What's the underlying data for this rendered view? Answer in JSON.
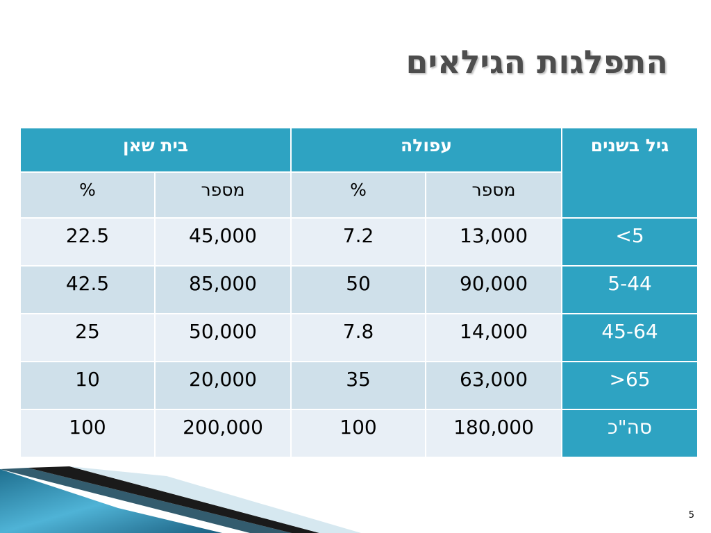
{
  "title": "התפלגות הגילאים",
  "table": {
    "age_header": "גיל בשנים",
    "group_headers": [
      "עפולה",
      "בית שאן"
    ],
    "sub_headers": {
      "count": "מספר",
      "percent": "%"
    },
    "rows": [
      {
        "age": "<5",
        "afula_count": "13,000",
        "afula_pct": "7.2",
        "beitshean_count": "45,000",
        "beitshean_pct": "22.5"
      },
      {
        "age": "5-44",
        "afula_count": "90,000",
        "afula_pct": "50",
        "beitshean_count": "85,000",
        "beitshean_pct": "42.5"
      },
      {
        "age": "45-64",
        "afula_count": "14,000",
        "afula_pct": "7.8",
        "beitshean_count": "50,000",
        "beitshean_pct": "25"
      },
      {
        "age": ">65",
        "afula_count": "63,000",
        "afula_pct": "35",
        "beitshean_count": "20,000",
        "beitshean_pct": "10"
      },
      {
        "age": "סה\"כ",
        "afula_count": "180,000",
        "afula_pct": "100",
        "beitshean_count": "200,000",
        "beitshean_pct": "100"
      }
    ]
  },
  "page_number": "5",
  "colors": {
    "header_teal": "#2ea3c2",
    "row_light": "#e8eff6",
    "row_dark": "#cfe0ea",
    "title_gray": "#4d4d4d"
  }
}
